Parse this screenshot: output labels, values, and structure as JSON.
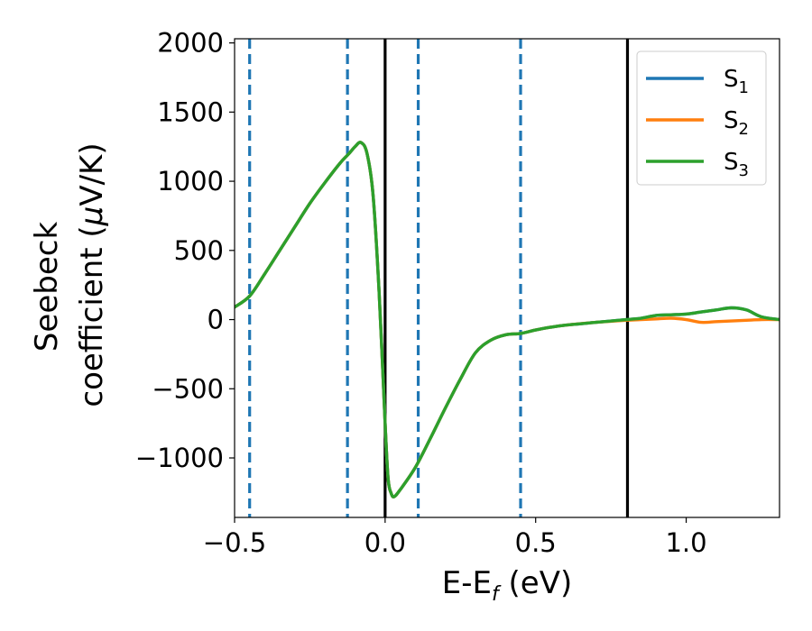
{
  "chart_data": {
    "type": "line",
    "title": "",
    "xlabel": {
      "main": "E-E",
      "sub": "f",
      "suffix": " (eV)"
    },
    "ylabel": {
      "line1": "Seebeck",
      "line2_prefix": "coefficient  (",
      "mu": "μ",
      "line2_suffix": "V/K)"
    },
    "xlim": [
      -0.5,
      1.31
    ],
    "ylim": [
      -1430,
      2030
    ],
    "x_ticks": [
      -0.5,
      0.0,
      0.5,
      1.0
    ],
    "x_tick_labels": [
      "−0.5",
      "0.0",
      "0.5",
      "1.0"
    ],
    "y_ticks": [
      -1000,
      -500,
      0,
      500,
      1000,
      1500,
      2000
    ],
    "y_tick_labels": [
      "−1000",
      "−500",
      "0",
      "500",
      "1000",
      "1500",
      "2000"
    ],
    "grid": false,
    "legend": "top-right",
    "vlines_dashed": {
      "x": [
        -0.45,
        -0.125,
        0.11,
        0.45
      ],
      "color": "#1f77b4"
    },
    "vlines_solid": {
      "x": [
        0.0,
        0.805
      ],
      "color": "#000000"
    },
    "series": [
      {
        "name": "S",
        "subscript": "1",
        "color": "#1f77b4",
        "x": [
          -0.5,
          -0.45,
          -0.4,
          -0.35,
          -0.3,
          -0.25,
          -0.2,
          -0.15,
          -0.12,
          -0.1,
          -0.08,
          -0.06,
          -0.04,
          -0.02,
          0.0,
          0.01,
          0.02,
          0.03,
          0.05,
          0.1,
          0.15,
          0.2,
          0.25,
          0.3,
          0.35,
          0.4,
          0.45,
          0.5,
          0.55,
          0.6,
          0.7,
          0.8,
          0.85,
          0.9,
          0.95,
          1.0,
          1.05,
          1.1,
          1.15,
          1.2,
          1.25,
          1.31
        ],
        "y": [
          90,
          170,
          330,
          500,
          670,
          840,
          990,
          1130,
          1200,
          1250,
          1280,
          1200,
          900,
          200,
          -750,
          -1150,
          -1255,
          -1280,
          -1230,
          -1070,
          -860,
          -640,
          -430,
          -240,
          -150,
          -110,
          -100,
          -75,
          -55,
          -40,
          -20,
          0,
          10,
          30,
          35,
          40,
          55,
          70,
          85,
          70,
          20,
          0
        ]
      },
      {
        "name": "S",
        "subscript": "2",
        "color": "#ff7f0e",
        "x": [
          -0.5,
          -0.45,
          -0.4,
          -0.35,
          -0.3,
          -0.25,
          -0.2,
          -0.15,
          -0.12,
          -0.1,
          -0.08,
          -0.06,
          -0.04,
          -0.02,
          0.0,
          0.01,
          0.02,
          0.03,
          0.05,
          0.1,
          0.15,
          0.2,
          0.25,
          0.3,
          0.35,
          0.4,
          0.45,
          0.5,
          0.55,
          0.6,
          0.7,
          0.8,
          0.85,
          0.9,
          0.95,
          1.0,
          1.05,
          1.1,
          1.15,
          1.2,
          1.25,
          1.31
        ],
        "y": [
          90,
          170,
          330,
          500,
          670,
          840,
          990,
          1130,
          1200,
          1250,
          1280,
          1200,
          900,
          200,
          -750,
          -1150,
          -1255,
          -1280,
          -1230,
          -1070,
          -860,
          -640,
          -430,
          -240,
          -150,
          -110,
          -100,
          -75,
          -55,
          -40,
          -20,
          -5,
          0,
          5,
          10,
          0,
          -20,
          -15,
          -10,
          -5,
          0,
          0
        ]
      },
      {
        "name": "S",
        "subscript": "3",
        "color": "#2ca02c",
        "x": [
          -0.5,
          -0.45,
          -0.4,
          -0.35,
          -0.3,
          -0.25,
          -0.2,
          -0.15,
          -0.12,
          -0.1,
          -0.08,
          -0.06,
          -0.04,
          -0.02,
          0.0,
          0.01,
          0.02,
          0.03,
          0.05,
          0.1,
          0.15,
          0.2,
          0.25,
          0.3,
          0.35,
          0.4,
          0.45,
          0.5,
          0.55,
          0.6,
          0.7,
          0.8,
          0.85,
          0.9,
          0.95,
          1.0,
          1.05,
          1.1,
          1.15,
          1.2,
          1.25,
          1.31
        ],
        "y": [
          90,
          170,
          330,
          500,
          670,
          840,
          990,
          1130,
          1200,
          1250,
          1280,
          1200,
          900,
          200,
          -750,
          -1150,
          -1255,
          -1280,
          -1230,
          -1070,
          -860,
          -640,
          -430,
          -240,
          -150,
          -110,
          -100,
          -75,
          -55,
          -40,
          -20,
          0,
          10,
          30,
          35,
          40,
          55,
          70,
          85,
          70,
          20,
          0
        ]
      }
    ]
  }
}
